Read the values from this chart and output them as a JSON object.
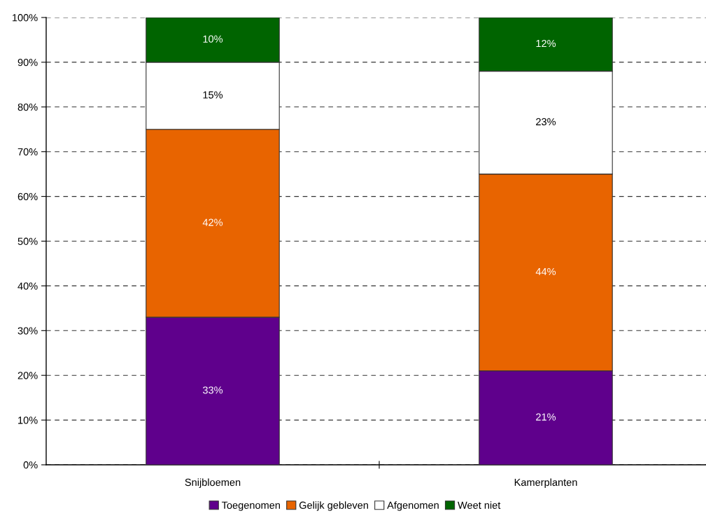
{
  "chart_data": {
    "type": "bar",
    "stacked": true,
    "categories": [
      "Snijbloemen",
      "Kamerplanten"
    ],
    "series": [
      {
        "name": "Toegenomen",
        "color": "#5f008c",
        "values": [
          33,
          21
        ],
        "value_labels": [
          "33%",
          "21%"
        ]
      },
      {
        "name": "Gelijk gebleven",
        "color": "#e86400",
        "values": [
          42,
          44
        ],
        "value_labels": [
          "42%",
          "44%"
        ]
      },
      {
        "name": "Afgenomen",
        "color": "#ffffff",
        "values": [
          15,
          23
        ],
        "value_labels": [
          "15%",
          "23%"
        ]
      },
      {
        "name": "Weet niet",
        "color": "#006400",
        "values": [
          10,
          12
        ],
        "value_labels": [
          "10%",
          "12%"
        ]
      }
    ],
    "ylim": [
      0,
      100
    ],
    "yticks": [
      {
        "value": 0,
        "label": "0%"
      },
      {
        "value": 10,
        "label": "10%"
      },
      {
        "value": 20,
        "label": "20%"
      },
      {
        "value": 30,
        "label": "30%"
      },
      {
        "value": 40,
        "label": "40%"
      },
      {
        "value": 50,
        "label": "50%"
      },
      {
        "value": 60,
        "label": "60%"
      },
      {
        "value": 70,
        "label": "70%"
      },
      {
        "value": 80,
        "label": "80%"
      },
      {
        "value": 90,
        "label": "90%"
      },
      {
        "value": 100,
        "label": "100%"
      }
    ],
    "grid": "y",
    "legend": "bottom"
  }
}
